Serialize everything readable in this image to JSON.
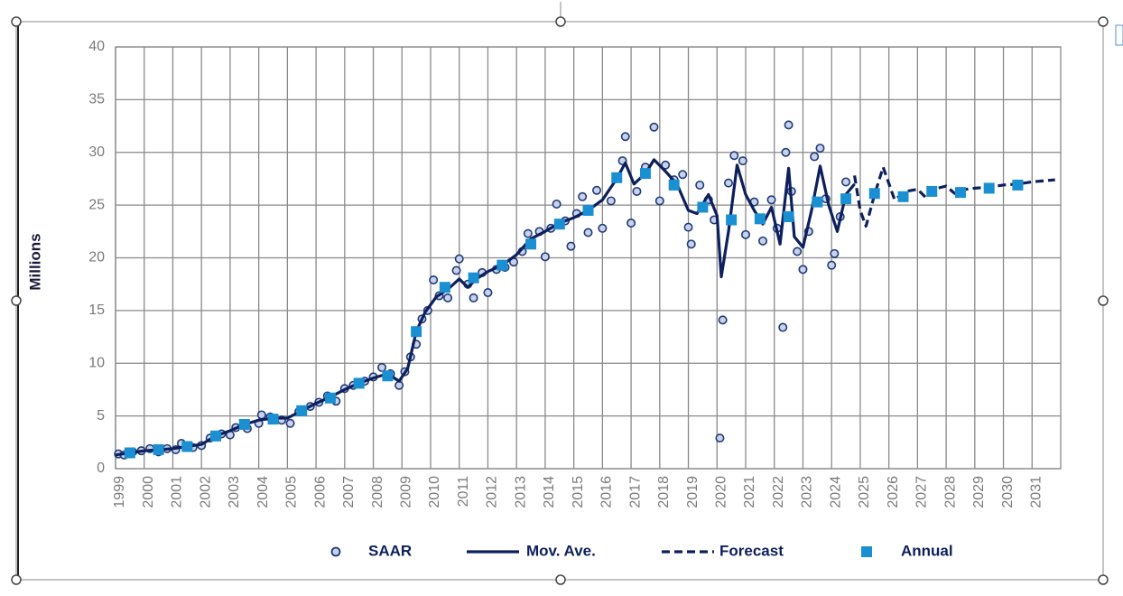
{
  "chart_data": {
    "type": "line",
    "ylabel": "Millions",
    "xlim": [
      1999,
      2032
    ],
    "xticks": [
      1999,
      2000,
      2001,
      2002,
      2003,
      2004,
      2005,
      2006,
      2007,
      2008,
      2009,
      2010,
      2011,
      2012,
      2013,
      2014,
      2015,
      2016,
      2017,
      2018,
      2019,
      2020,
      2021,
      2022,
      2023,
      2024,
      2025,
      2026,
      2027,
      2028,
      2029,
      2030,
      2031
    ],
    "ylim": [
      0,
      40
    ],
    "yticks": [
      0,
      5,
      10,
      15,
      20,
      25,
      30,
      35,
      40
    ],
    "grid": true,
    "series": [
      {
        "name": "SAAR",
        "type": "scatter",
        "marker": "circle",
        "color": "#1f3a7a",
        "x": [
          1999.1,
          1999.3,
          1999.6,
          1999.9,
          2000.2,
          2000.5,
          2000.8,
          2001.1,
          2001.3,
          2001.7,
          2002.0,
          2002.3,
          2002.7,
          2003.0,
          2003.2,
          2003.6,
          2004.0,
          2004.1,
          2004.4,
          2004.8,
          2005.1,
          2005.4,
          2005.8,
          2006.1,
          2006.4,
          2006.7,
          2007.0,
          2007.3,
          2007.7,
          2008.0,
          2008.3,
          2008.6,
          2008.9,
          2009.1,
          2009.3,
          2009.5,
          2009.7,
          2009.9,
          2010.1,
          2010.3,
          2010.6,
          2010.9,
          2011.0,
          2011.3,
          2011.5,
          2011.8,
          2012.0,
          2012.3,
          2012.6,
          2012.9,
          2013.2,
          2013.4,
          2013.8,
          2014.0,
          2014.2,
          2014.4,
          2014.7,
          2014.9,
          2015.1,
          2015.3,
          2015.5,
          2015.8,
          2016.0,
          2016.3,
          2016.7,
          2016.8,
          2017.0,
          2017.2,
          2017.5,
          2017.8,
          2018.0,
          2018.2,
          2018.5,
          2018.8,
          2019.0,
          2019.1,
          2019.4,
          2019.7,
          2019.9,
          2020.1,
          2020.2,
          2020.4,
          2020.6,
          2020.9,
          2021.0,
          2021.3,
          2021.6,
          2021.9,
          2022.1,
          2022.3,
          2022.4,
          2022.5,
          2022.6,
          2022.8,
          2023.0,
          2023.2,
          2023.4,
          2023.6,
          2023.8,
          2024.0,
          2024.1,
          2024.3,
          2024.5
        ],
        "values": [
          1.4,
          1.3,
          1.6,
          1.7,
          1.9,
          1.6,
          1.9,
          1.8,
          2.4,
          2.0,
          2.2,
          2.9,
          3.3,
          3.2,
          3.9,
          3.8,
          4.3,
          5.1,
          4.9,
          4.6,
          4.3,
          5.4,
          5.9,
          6.3,
          6.9,
          6.4,
          7.6,
          7.9,
          8.3,
          8.7,
          9.6,
          9.0,
          7.9,
          9.2,
          10.6,
          11.8,
          14.2,
          15.0,
          17.9,
          16.4,
          16.2,
          18.8,
          19.9,
          17.5,
          16.2,
          18.6,
          16.7,
          18.9,
          19.1,
          19.6,
          20.6,
          22.3,
          22.5,
          20.1,
          22.8,
          25.1,
          23.5,
          21.1,
          24.2,
          25.8,
          22.4,
          26.4,
          22.8,
          25.4,
          29.2,
          31.5,
          23.3,
          26.3,
          28.6,
          32.4,
          25.4,
          28.8,
          27.4,
          27.9,
          22.9,
          21.3,
          26.9,
          25.5,
          23.6,
          2.9,
          14.1,
          27.1,
          29.7,
          29.2,
          22.2,
          25.3,
          21.6,
          25.5,
          22.8,
          13.4,
          30.0,
          32.6,
          26.3,
          20.6,
          18.9,
          22.5,
          29.6,
          30.4,
          25.6,
          19.3,
          20.4,
          23.9,
          27.2
        ]
      },
      {
        "name": "Mov. Ave.",
        "type": "line",
        "dashed": false,
        "color": "#0d1f5c",
        "x": [
          1999,
          1999.5,
          2000,
          2000.5,
          2001,
          2001.5,
          2002,
          2002.5,
          2003,
          2003.5,
          2004,
          2004.5,
          2005,
          2005.5,
          2006,
          2006.5,
          2007,
          2007.5,
          2008,
          2008.5,
          2008.9,
          2009.2,
          2009.5,
          2009.8,
          2010.2,
          2010.6,
          2011,
          2011.3,
          2011.6,
          2012,
          2012.5,
          2013,
          2013.5,
          2014,
          2014.5,
          2015,
          2015.5,
          2016,
          2016.5,
          2016.8,
          2017.1,
          2017.5,
          2017.8,
          2018.2,
          2018.6,
          2019,
          2019.3,
          2019.7,
          2020,
          2020.15,
          2020.4,
          2020.7,
          2021,
          2021.3,
          2021.6,
          2021.9,
          2022.2,
          2022.5,
          2022.7,
          2023,
          2023.3,
          2023.6,
          2023.9,
          2024.2,
          2024.5,
          2024.8
        ],
        "values": [
          1.3,
          1.5,
          1.7,
          1.8,
          1.9,
          2.1,
          2.3,
          3.1,
          3.6,
          4.2,
          4.6,
          4.8,
          4.8,
          5.5,
          6.2,
          6.8,
          7.5,
          8.1,
          8.6,
          9.0,
          8.3,
          9.5,
          13.0,
          14.8,
          16.3,
          17.0,
          18.0,
          17.2,
          18.0,
          18.7,
          19.3,
          20.3,
          21.8,
          22.5,
          23.3,
          23.8,
          24.5,
          25.5,
          27.5,
          29.0,
          27.0,
          28.0,
          29.3,
          28.2,
          27.0,
          24.5,
          24.2,
          26.0,
          24.0,
          18.2,
          22.5,
          28.8,
          26.0,
          24.5,
          23.2,
          24.8,
          21.3,
          28.5,
          22.0,
          21.0,
          24.5,
          28.7,
          25.0,
          22.5,
          26.0,
          27.0
        ]
      },
      {
        "name": "Forecast",
        "type": "line",
        "dashed": true,
        "color": "#0d1f5c",
        "x": [
          2024.8,
          2025.0,
          2025.2,
          2025.5,
          2025.8,
          2026.2,
          2026.6,
          2027,
          2027.3,
          2027.7,
          2028,
          2028.3,
          2028.7,
          2029,
          2029.5,
          2030,
          2030.5,
          2031,
          2031.8
        ],
        "values": [
          27.8,
          24.5,
          23.0,
          26.0,
          28.6,
          25.5,
          26.3,
          26.5,
          25.7,
          26.6,
          26.8,
          26.1,
          26.5,
          26.6,
          26.7,
          26.9,
          27.0,
          27.2,
          27.4
        ]
      },
      {
        "name": "Annual",
        "type": "scatter",
        "marker": "square",
        "color": "#1a8fd1",
        "x": [
          1999.5,
          2000.5,
          2001.5,
          2002.5,
          2003.5,
          2004.5,
          2005.5,
          2006.5,
          2007.5,
          2008.5,
          2009.5,
          2010.5,
          2011.5,
          2012.5,
          2013.5,
          2014.5,
          2015.5,
          2016.5,
          2017.5,
          2018.5,
          2019.5,
          2020.5,
          2021.5,
          2022.5,
          2023.5,
          2024.5,
          2025.5,
          2026.5,
          2027.5,
          2028.5,
          2029.5,
          2030.5
        ],
        "values": [
          1.5,
          1.8,
          2.1,
          3.1,
          4.2,
          4.7,
          5.5,
          6.7,
          8.1,
          8.8,
          13.0,
          17.2,
          18.1,
          19.3,
          21.3,
          23.2,
          24.5,
          27.6,
          28.0,
          26.9,
          24.8,
          23.6,
          23.7,
          23.9,
          25.3,
          25.6,
          26.1,
          25.8,
          26.3,
          26.2,
          26.6,
          26.9
        ]
      }
    ]
  }
}
